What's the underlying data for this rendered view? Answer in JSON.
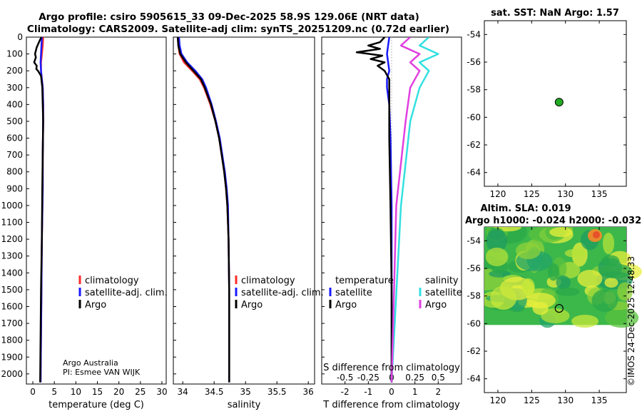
{
  "header": {
    "line1": "Argo profile: csiro 5905615_33 09-Dec-2025 58.9S 129.06E (NRT data)",
    "line2": "Climatology: CARS2009. Satellite-adj clim: synTS_20251209.nc (0.72d earlier)"
  },
  "credit": {
    "line1": "Argo Australia",
    "line2": "PI: Esmee VAN WIJK",
    "watermark": "©IMOS 24-Dec-2025 12:48:33"
  },
  "colors": {
    "climatology": "#ff2a2a",
    "satellite": "#1a1aff",
    "argo": "#000000",
    "s_satellite": "#33e0e0",
    "s_argo": "#e040e0",
    "marker": "#22aa22"
  },
  "chart_data": [
    {
      "type": "line",
      "id": "temperature",
      "xlabel": "temperature (deg C)",
      "ylabel": "",
      "xlim": [
        -1.5,
        31
      ],
      "ylim": [
        2060,
        0
      ],
      "xticks": [
        "0",
        "5",
        "10",
        "15",
        "20",
        "25",
        "30"
      ],
      "yticks": [
        "0",
        "100",
        "200",
        "300",
        "400",
        "500",
        "600",
        "700",
        "800",
        "900",
        "1000",
        "1100",
        "1200",
        "1300",
        "1400",
        "1500",
        "1600",
        "1700",
        "1800",
        "1900",
        "2000"
      ],
      "legend": [
        "climatology",
        "satellite-adj. clim.",
        "Argo"
      ],
      "series": [
        {
          "name": "climatology",
          "depth": [
            0,
            50,
            100,
            150,
            200,
            250,
            300,
            400,
            500,
            700,
            900,
            1200,
            1500,
            2050
          ],
          "values": [
            2.4,
            2.3,
            2.1,
            1.9,
            1.9,
            2.1,
            2.3,
            2.4,
            2.4,
            2.3,
            2.3,
            2.1,
            2.0,
            1.8
          ]
        },
        {
          "name": "satellite-adj. clim.",
          "depth": [
            0,
            50,
            100,
            150,
            200,
            250,
            300,
            400,
            500,
            700,
            900,
            1200,
            1500,
            2050
          ],
          "values": [
            2.1,
            2.0,
            1.9,
            1.8,
            1.9,
            2.1,
            2.3,
            2.4,
            2.4,
            2.3,
            2.3,
            2.1,
            2.0,
            1.8
          ]
        },
        {
          "name": "Argo",
          "depth": [
            0,
            20,
            60,
            100,
            120,
            150,
            170,
            190,
            200,
            230,
            300,
            400,
            500,
            700,
            900,
            1200,
            1500,
            2050
          ],
          "values": [
            2.0,
            1.6,
            0.9,
            0.5,
            0.7,
            0.3,
            0.9,
            0.8,
            1.2,
            1.9,
            2.2,
            2.3,
            2.4,
            2.3,
            2.2,
            2.1,
            1.9,
            1.7
          ]
        }
      ]
    },
    {
      "type": "line",
      "id": "salinity",
      "xlabel": "salinity",
      "xlim": [
        33.85,
        36.1
      ],
      "ylim": [
        2060,
        0
      ],
      "xticks": [
        "34",
        "34.5",
        "35",
        "35.5",
        "36"
      ],
      "legend": [
        "climatology",
        "satellite-adj. clim.",
        "Argo"
      ],
      "series": [
        {
          "name": "climatology",
          "depth": [
            0,
            50,
            100,
            150,
            200,
            250,
            300,
            400,
            500,
            600,
            700,
            800,
            900,
            1000,
            1200,
            1500,
            2050
          ],
          "values": [
            33.92,
            33.93,
            33.95,
            34.02,
            34.15,
            34.27,
            34.34,
            34.44,
            34.52,
            34.58,
            34.62,
            34.66,
            34.69,
            34.71,
            34.73,
            34.74,
            34.74
          ]
        },
        {
          "name": "satellite-adj. clim.",
          "depth": [
            0,
            50,
            100,
            150,
            200,
            250,
            300,
            400,
            500,
            600,
            700,
            800,
            900,
            1000,
            1200,
            1500,
            2050
          ],
          "values": [
            33.94,
            33.95,
            33.98,
            34.07,
            34.2,
            34.31,
            34.37,
            34.46,
            34.53,
            34.59,
            34.63,
            34.67,
            34.7,
            34.72,
            34.73,
            34.74,
            34.74
          ]
        },
        {
          "name": "Argo",
          "depth": [
            0,
            50,
            100,
            150,
            200,
            250,
            300,
            400,
            500,
            600,
            700,
            800,
            900,
            1000,
            1200,
            1500,
            2050
          ],
          "values": [
            33.92,
            33.93,
            33.96,
            34.05,
            34.17,
            34.29,
            34.35,
            34.45,
            34.52,
            34.58,
            34.62,
            34.66,
            34.69,
            34.71,
            34.73,
            34.74,
            34.74
          ]
        }
      ]
    },
    {
      "type": "line",
      "id": "difference",
      "xlabel": "T difference from climatology",
      "top_label": "S difference from climatology",
      "xlim": [
        -3,
        3
      ],
      "ylim": [
        2060,
        0
      ],
      "xticks": [
        "-2",
        "-1",
        "0",
        "1",
        "2"
      ],
      "s_xticks": [
        "-0.5",
        "-0.25",
        "0",
        "0.25",
        "0.5"
      ],
      "legend_titles": [
        "temperature",
        "salinity"
      ],
      "legend": [
        "satellite",
        "Argo",
        "satellite",
        "Argo"
      ],
      "series": [
        {
          "name": "T satellite",
          "depth": [
            0,
            100,
            200,
            250,
            300,
            400,
            600,
            1000,
            1500,
            2050
          ],
          "values": [
            -0.1,
            -0.2,
            -0.1,
            -0.2,
            -0.2,
            -0.1,
            -0.05,
            0.0,
            0.0,
            0.0
          ]
        },
        {
          "name": "T Argo",
          "depth": [
            0,
            30,
            50,
            70,
            90,
            110,
            130,
            150,
            170,
            200,
            250,
            300,
            400,
            600,
            1000,
            1500,
            2050
          ],
          "values": [
            -0.3,
            -0.5,
            -1.0,
            -0.5,
            -1.5,
            -0.4,
            -0.9,
            -0.3,
            -0.6,
            -0.3,
            -0.1,
            -0.1,
            -0.1,
            -0.1,
            -0.05,
            0.0,
            0.0
          ]
        },
        {
          "name": "S satellite",
          "depth": [
            0,
            50,
            100,
            150,
            200,
            300,
            500,
            1000,
            2050
          ],
          "values": [
            0.4,
            0.3,
            0.5,
            0.3,
            0.4,
            0.3,
            0.2,
            0.1,
            0.0
          ]
        },
        {
          "name": "S Argo",
          "depth": [
            0,
            50,
            100,
            150,
            200,
            300,
            500,
            1000,
            2050
          ],
          "values": [
            0.2,
            0.1,
            0.3,
            0.2,
            0.3,
            0.2,
            0.15,
            0.05,
            0.0
          ]
        }
      ]
    },
    {
      "type": "scatter",
      "id": "sst_map",
      "title": "sat. SST: NaN Argo: 1.57",
      "xlim": [
        118,
        139
      ],
      "ylim": [
        -65,
        -53
      ],
      "xticks": [
        "120",
        "125",
        "130",
        "135"
      ],
      "yticks": [
        "-54",
        "-56",
        "-58",
        "-60",
        "-62",
        "-64"
      ],
      "points": [
        {
          "lon": 129.06,
          "lat": -58.9
        }
      ]
    },
    {
      "type": "heatmap",
      "id": "sla_map",
      "title1": "Altim. SLA: 0.019",
      "title2": "Argo h1000: -0.024 h2000: -0.032",
      "xlim": [
        118,
        139
      ],
      "ylim": [
        -65,
        -53
      ],
      "xticks": [
        "120",
        "125",
        "130",
        "135"
      ],
      "yticks": [
        "-54",
        "-56",
        "-58",
        "-60",
        "-62",
        "-64"
      ],
      "data_lat_range": [
        -60.1,
        -53
      ],
      "points": [
        {
          "lon": 129.06,
          "lat": -58.9
        }
      ]
    }
  ]
}
